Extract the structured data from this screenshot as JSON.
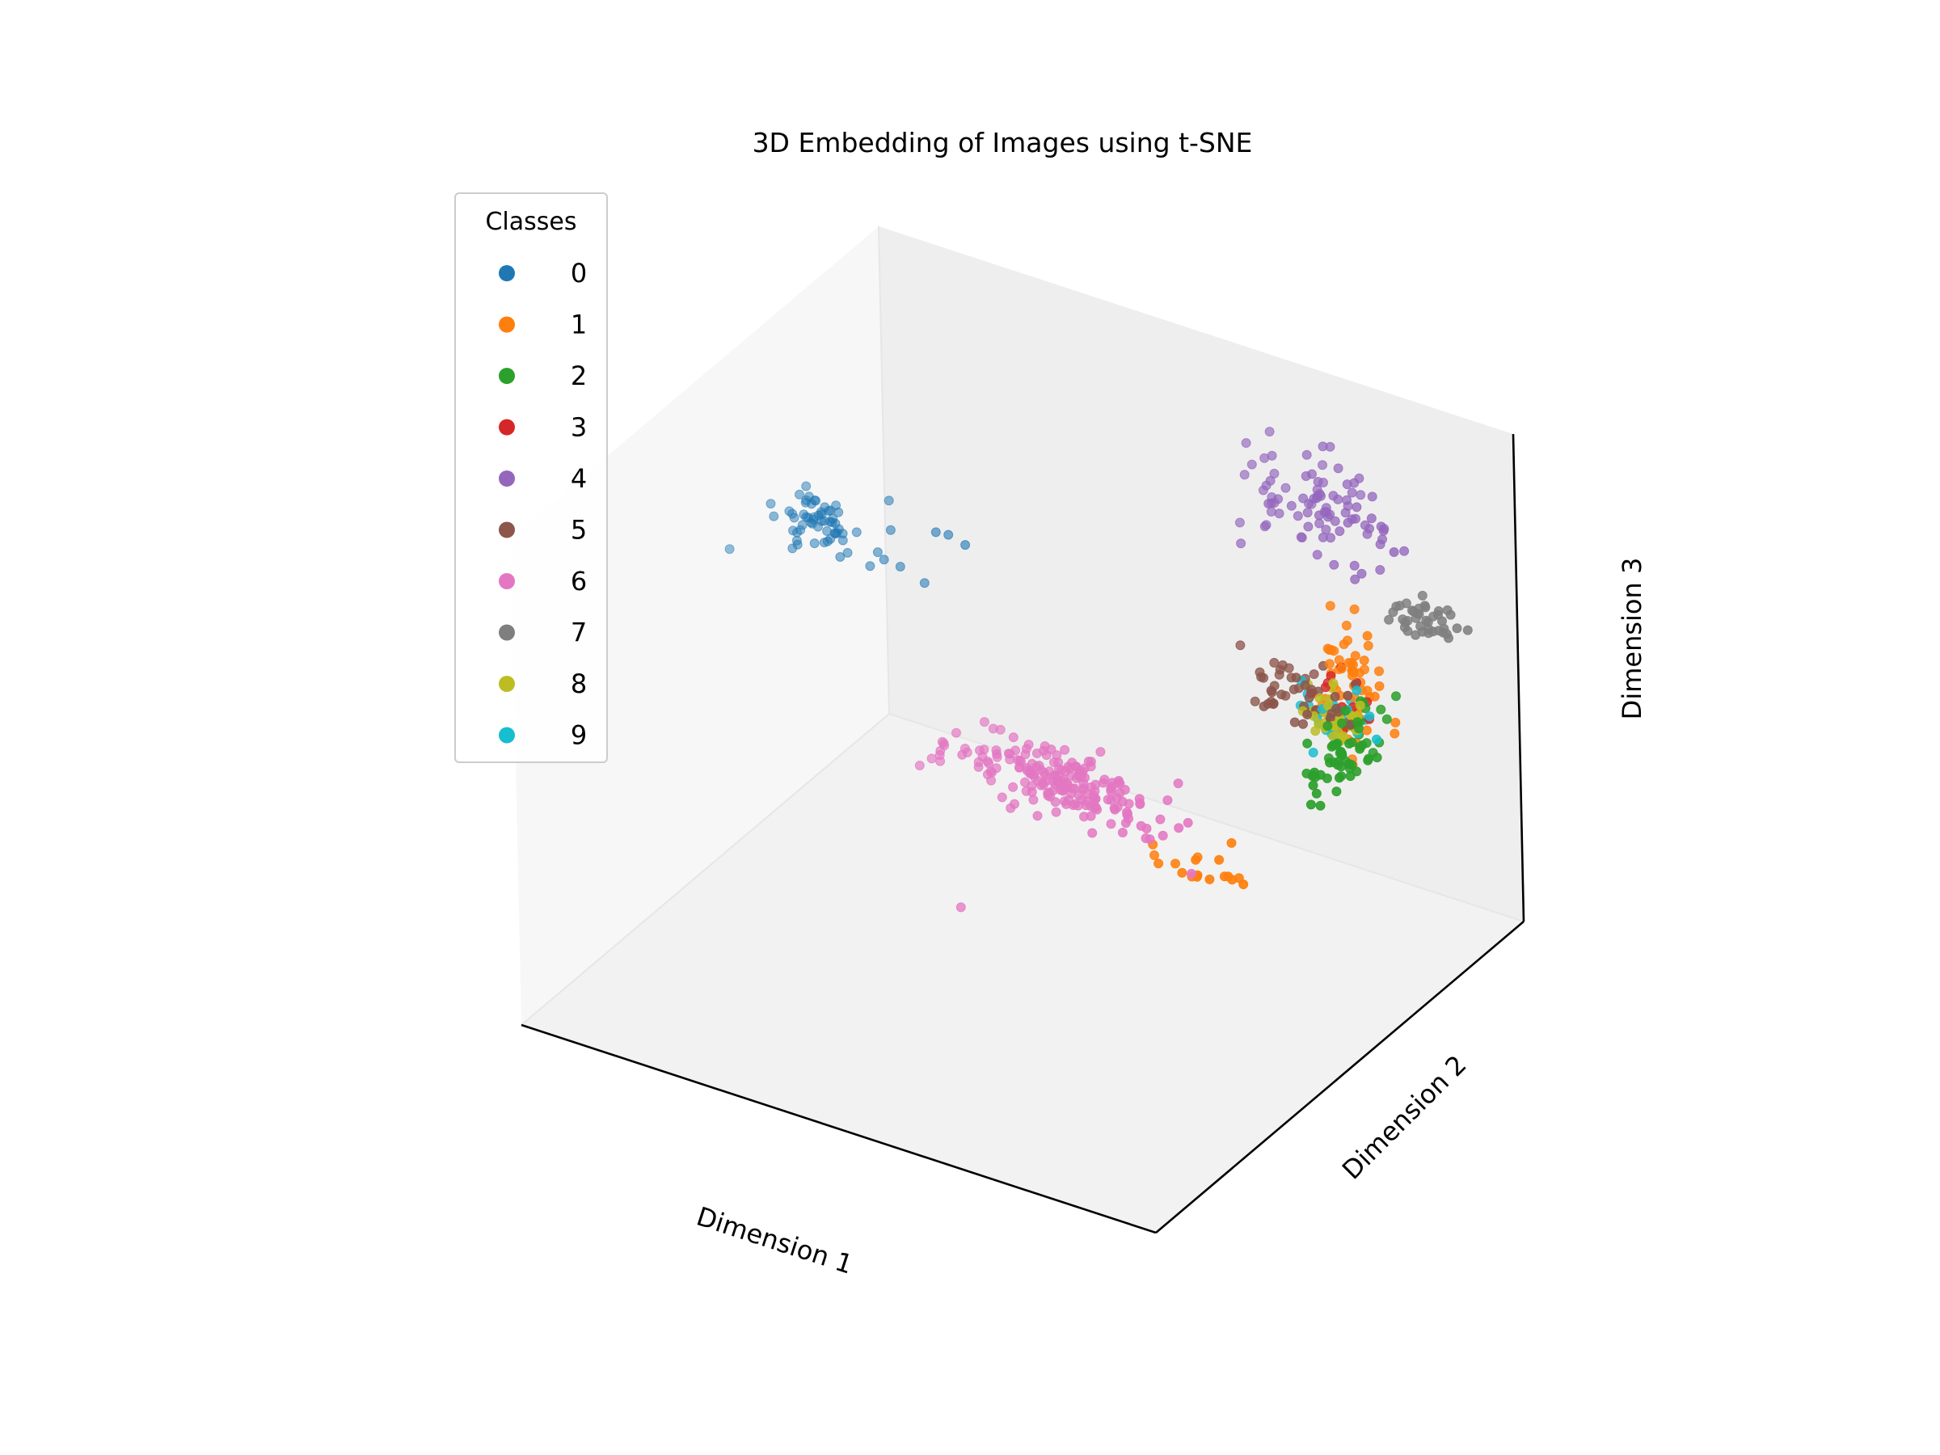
{
  "chart_data": {
    "type": "scatter",
    "projection": "3d",
    "title": "3D Embedding of Images using t-SNE",
    "xlabel": "Dimension 1",
    "ylabel": "Dimension 2",
    "zlabel": "Dimension 3",
    "xlim": [
      -60,
      60
    ],
    "ylim": [
      -60,
      60
    ],
    "zlim": [
      -60,
      60
    ],
    "grid": false,
    "tick_labels_shown": false,
    "legend": {
      "title": "Classes",
      "placement": "upper-left"
    },
    "series": [
      {
        "name": "0",
        "color": "#1f77b4",
        "clusters": [
          {
            "center": [
              -38,
              0,
              35
            ],
            "spread": [
              4,
              2,
              3
            ],
            "count": 55
          },
          {
            "center": [
              -28,
              5,
              32
            ],
            "spread": [
              4,
              2,
              4
            ],
            "count": 8
          },
          {
            "center": [
              -15,
              6,
              38
            ],
            "spread": [
              2,
              1,
              1
            ],
            "count": 3
          },
          {
            "center": [
              -50,
              -5,
              28
            ],
            "spread": [
              1,
              1,
              1
            ],
            "count": 1
          }
        ]
      },
      {
        "name": "1",
        "color": "#ff7f0e",
        "clusters": [
          {
            "center": [
              45,
              32,
              10
            ],
            "spread": [
              3,
              2,
              8
            ],
            "count": 60
          },
          {
            "center": [
              38,
              -5,
              -15
            ],
            "spread": [
              4,
              3,
              3
            ],
            "count": 18
          }
        ]
      },
      {
        "name": "2",
        "color": "#2ca02c",
        "clusters": [
          {
            "center": [
              50,
              20,
              2
            ],
            "spread": [
              2,
              6,
              4
            ],
            "count": 60
          }
        ]
      },
      {
        "name": "3",
        "color": "#d62728",
        "clusters": [
          {
            "center": [
              44,
              28,
              8
            ],
            "spread": [
              3,
              3,
              3
            ],
            "count": 12
          }
        ]
      },
      {
        "name": "4",
        "color": "#9467bd",
        "clusters": [
          {
            "center": [
              30,
              45,
              40
            ],
            "spread": [
              8,
              4,
              6
            ],
            "count": 90
          }
        ]
      },
      {
        "name": "5",
        "color": "#8c564b",
        "clusters": [
          {
            "center": [
              40,
              25,
              10
            ],
            "spread": [
              5,
              3,
              3
            ],
            "count": 50
          }
        ]
      },
      {
        "name": "6",
        "color": "#e377c2",
        "clusters": [
          {
            "center": [
              12,
              -5,
              -5
            ],
            "spread": [
              12,
              3,
              3
            ],
            "count": 200
          },
          {
            "center": [
              0,
              -20,
              -30
            ],
            "spread": [
              1,
              1,
              1
            ],
            "count": 1
          }
        ]
      },
      {
        "name": "7",
        "color": "#7f7f7f",
        "clusters": [
          {
            "center": [
              55,
              40,
              25
            ],
            "spread": [
              3,
              2,
              2
            ],
            "count": 40
          }
        ]
      },
      {
        "name": "8",
        "color": "#bcbd22",
        "clusters": [
          {
            "center": [
              45,
              25,
              5
            ],
            "spread": [
              3,
              3,
              3
            ],
            "count": 40
          }
        ]
      },
      {
        "name": "9",
        "color": "#17becf",
        "clusters": [
          {
            "center": [
              44,
              28,
              4
            ],
            "spread": [
              3,
              3,
              4
            ],
            "count": 25
          }
        ]
      }
    ]
  }
}
